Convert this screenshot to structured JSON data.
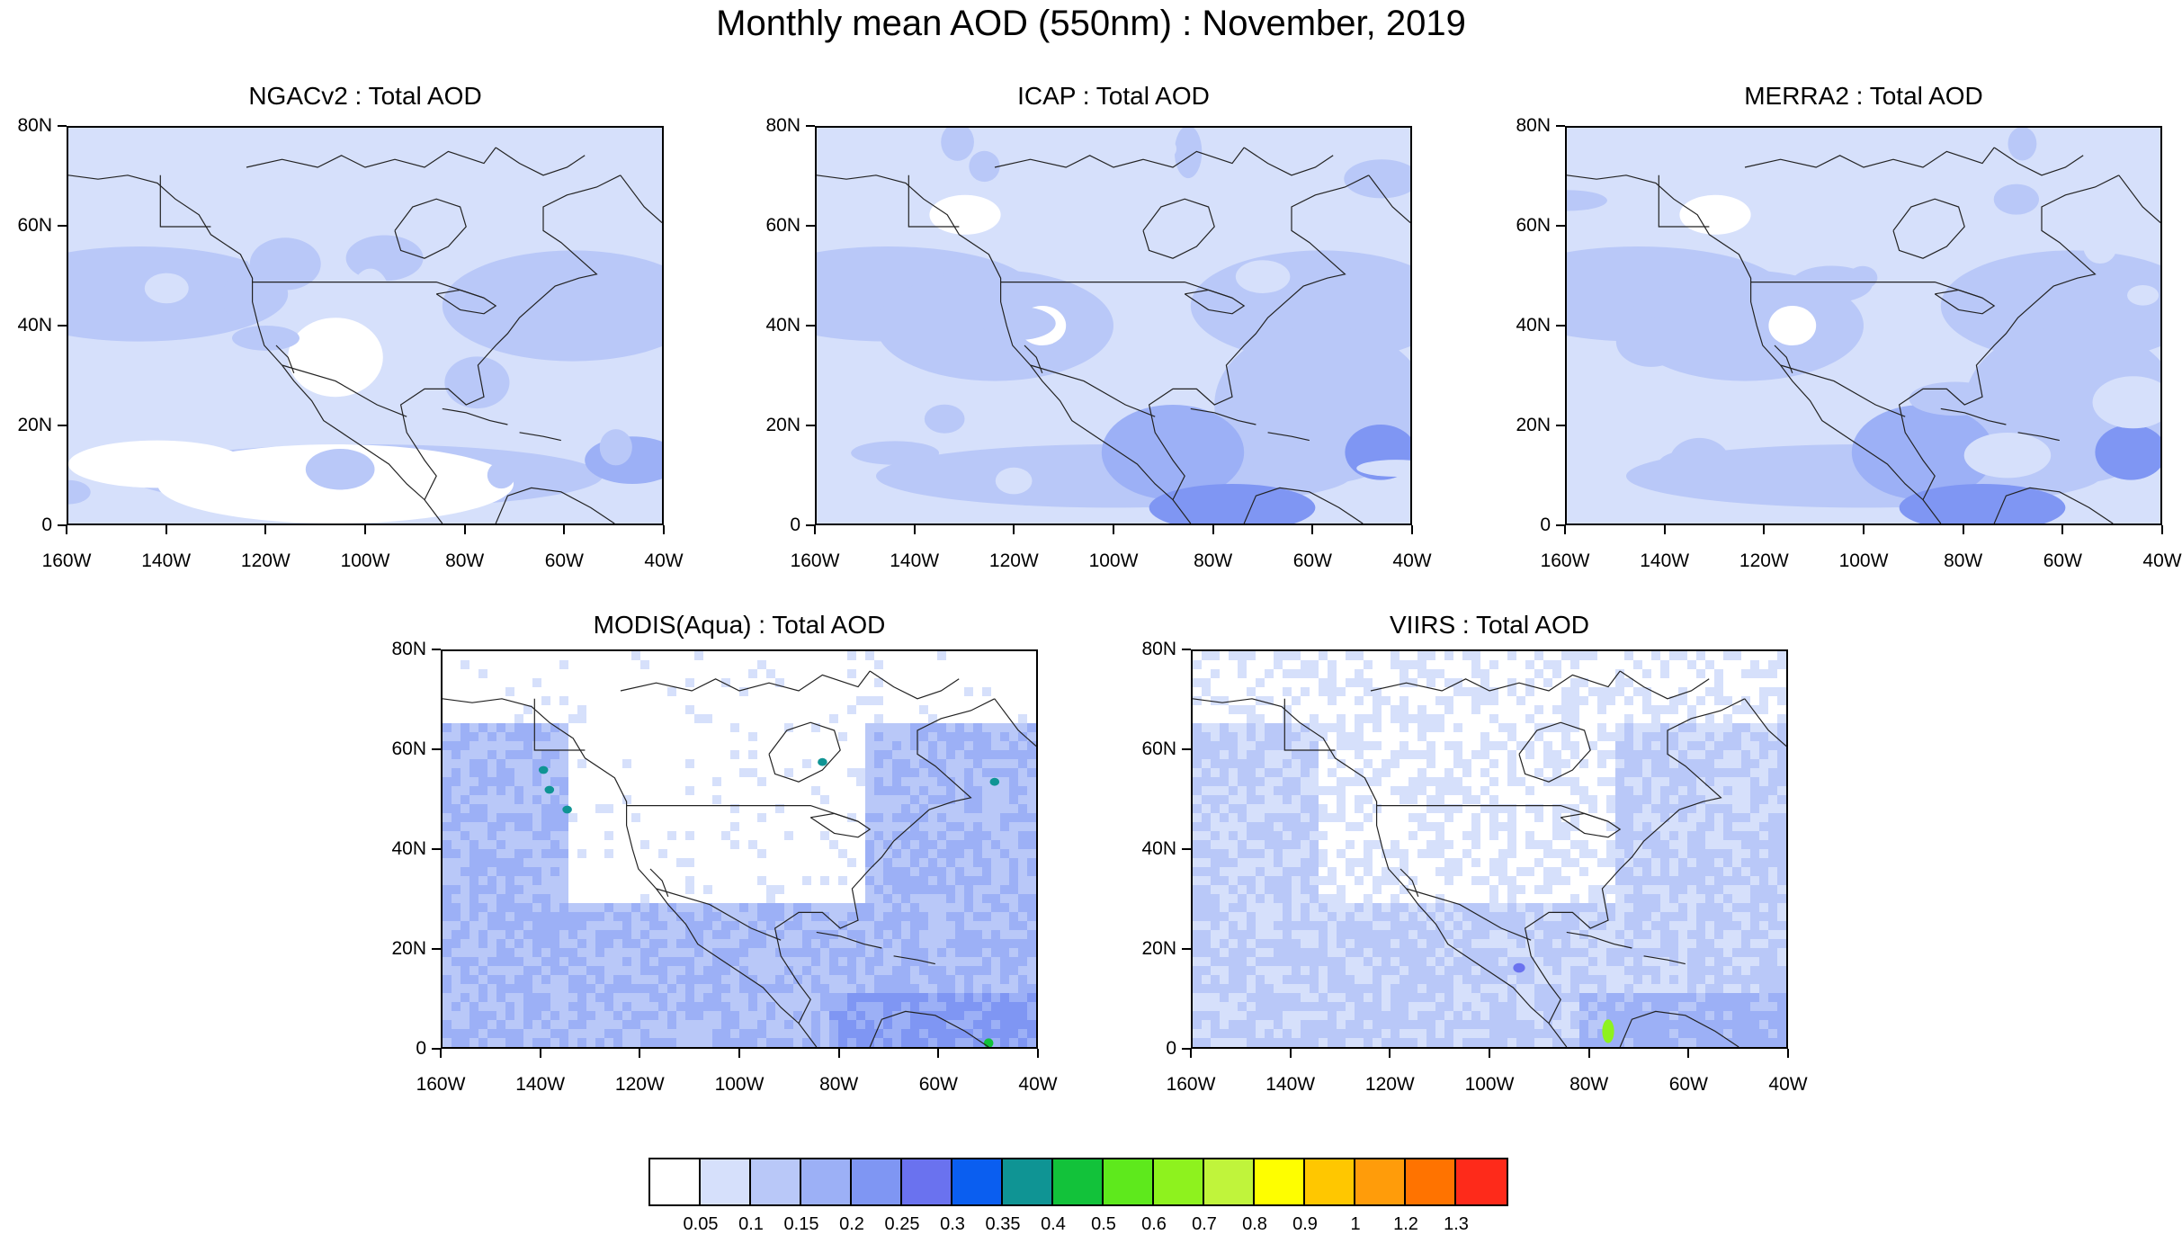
{
  "main_title": "Monthly mean AOD (550nm) : November, 2019",
  "lat_labels": [
    "80N",
    "60N",
    "40N",
    "20N",
    "0"
  ],
  "lon_labels": [
    "160W",
    "140W",
    "120W",
    "100W",
    "80W",
    "60W",
    "40W"
  ],
  "panels": [
    {
      "title": "NGACv2 : Total AOD",
      "style": "smooth-low"
    },
    {
      "title": "ICAP : Total AOD",
      "style": "smooth-mid"
    },
    {
      "title": "MERRA2 : Total AOD",
      "style": "smooth-mid"
    },
    {
      "title": "MODIS(Aqua) : Total AOD",
      "style": "noisy-high"
    },
    {
      "title": "VIIRS : Total AOD",
      "style": "noisy-mid"
    }
  ],
  "colorbar": {
    "colors": [
      "#ffffff",
      "#d6e0fb",
      "#b9c8f8",
      "#9cb0f6",
      "#7f96f3",
      "#6a72ef",
      "#0a5ef0",
      "#0f9494",
      "#12c23a",
      "#5ee91c",
      "#8ef21e",
      "#c0f43b",
      "#fefe00",
      "#ffc700",
      "#ff9c0a",
      "#ff7300",
      "#fe2a1a"
    ],
    "labels": [
      "0.05",
      "0.1",
      "0.15",
      "0.2",
      "0.25",
      "0.3",
      "0.35",
      "0.4",
      "0.5",
      "0.6",
      "0.7",
      "0.8",
      "0.9",
      "1",
      "1.2",
      "1.3"
    ]
  }
}
